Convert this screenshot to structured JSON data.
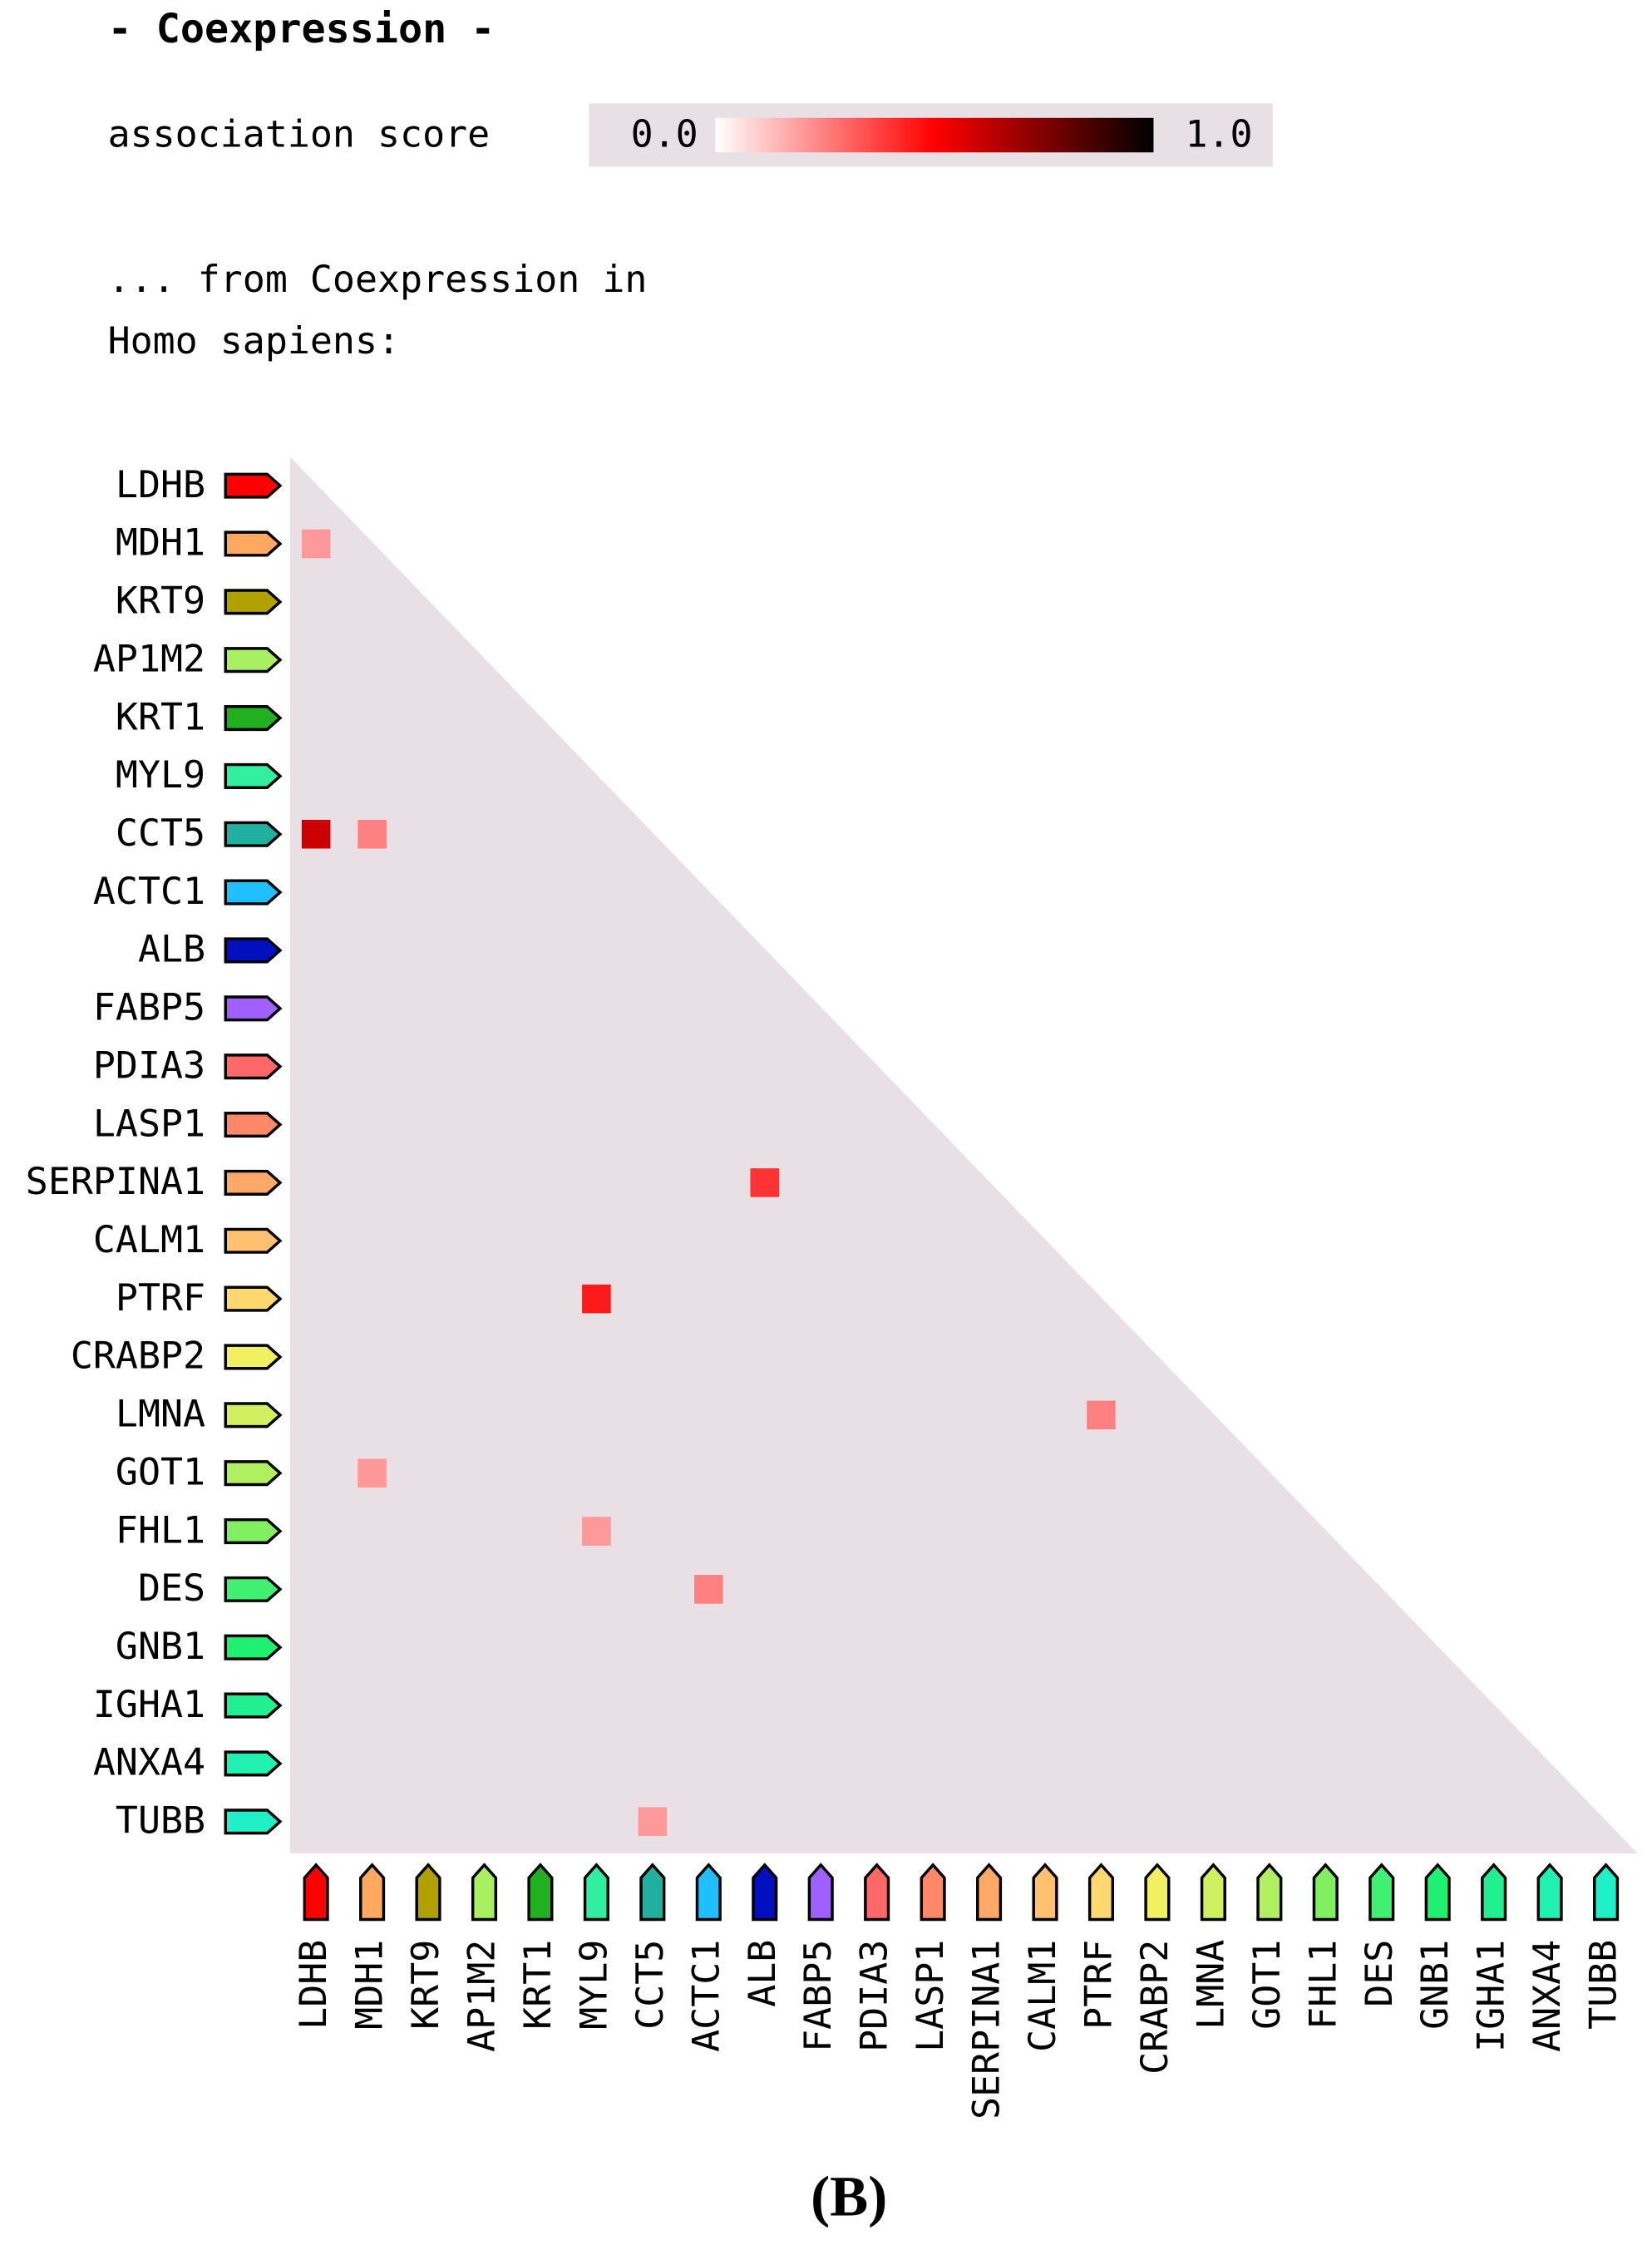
{
  "chart_data": {
    "type": "heatmap",
    "title": "- Coexpression -",
    "legend_label": "association score",
    "subtitle_lines": [
      "... from Coexpression in",
      "Homo sapiens:"
    ],
    "colorbar": {
      "colors": [
        "#ffffff",
        "#ff0000",
        "#000000"
      ],
      "lim": [
        0,
        1
      ],
      "ticks": [
        {
          "value": 0,
          "label": "0.0"
        },
        {
          "value": 1,
          "label": "1.0"
        }
      ]
    },
    "genes": [
      "LDHB",
      "MDH1",
      "KRT9",
      "AP1M2",
      "KRT1",
      "MYL9",
      "CCT5",
      "ACTC1",
      "ALB",
      "FABP5",
      "PDIA3",
      "LASP1",
      "SERPINA1",
      "CALM1",
      "PTRF",
      "CRABP2",
      "LMNA",
      "GOT1",
      "FHL1",
      "DES",
      "GNB1",
      "IGHA1",
      "ANXA4",
      "TUBB"
    ],
    "gene_colors": [
      "#ff0000",
      "#ffa860",
      "#b0a000",
      "#a8f060",
      "#20b020",
      "#30f0a0",
      "#20b0a0",
      "#20c0ff",
      "#0010c0",
      "#a060ff",
      "#ff6868",
      "#ff8868",
      "#ffa868",
      "#ffc070",
      "#ffd870",
      "#f0f060",
      "#d0f060",
      "#b0f060",
      "#80f060",
      "#40f070",
      "#20f070",
      "#20f090",
      "#20f0b0",
      "#20f0c8"
    ],
    "cells": [
      {
        "row": "MDH1",
        "col": "LDHB",
        "value": 0.2
      },
      {
        "row": "CCT5",
        "col": "LDHB",
        "value": 0.6
      },
      {
        "row": "CCT5",
        "col": "MDH1",
        "value": 0.25
      },
      {
        "row": "SERPINA1",
        "col": "ALB",
        "value": 0.4
      },
      {
        "row": "PTRF",
        "col": "MYL9",
        "value": 0.45
      },
      {
        "row": "LMNA",
        "col": "PTRF",
        "value": 0.25
      },
      {
        "row": "GOT1",
        "col": "MDH1",
        "value": 0.2
      },
      {
        "row": "FHL1",
        "col": "MYL9",
        "value": 0.2
      },
      {
        "row": "DES",
        "col": "ACTC1",
        "value": 0.25
      },
      {
        "row": "TUBB",
        "col": "CCT5",
        "value": 0.2
      }
    ],
    "caption": "(B)"
  }
}
